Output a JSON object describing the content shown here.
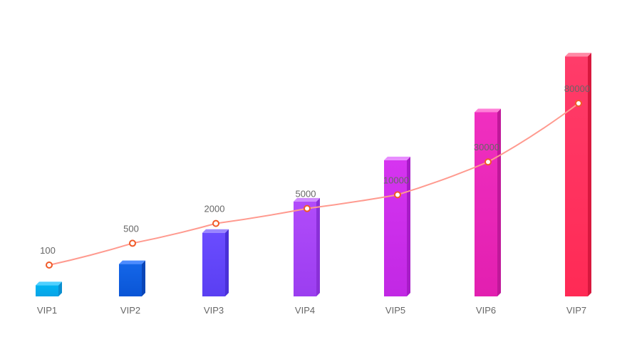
{
  "chart_data": {
    "type": "bar",
    "categories": [
      "VIP1",
      "VIP2",
      "VIP3",
      "VIP4",
      "VIP5",
      "VIP6",
      "VIP7"
    ],
    "series": [
      {
        "type": "bar",
        "values": [
          1,
          2.9,
          5.7,
          8.5,
          12.2,
          16.5,
          21.5
        ],
        "colors": [
          [
            "#00b4f2",
            "#0aa3e6"
          ],
          [
            "#1466e8",
            "#0a55d6"
          ],
          [
            "#6a4cff",
            "#5a3ff2"
          ],
          [
            "#b14bfa",
            "#9b3ef0"
          ],
          [
            "#d634f0",
            "#c128e4"
          ],
          [
            "#f02fc0",
            "#e21fb0"
          ],
          [
            "#ff3c6a",
            "#ff2a55"
          ]
        ],
        "side_colors": [
          "#0a8fd0",
          "#0a46b8",
          "#4a30d8",
          "#8a30d8",
          "#a81cc8",
          "#c0189a",
          "#d8183e"
        ],
        "top_colors": [
          "#4fd0ff",
          "#4d8cff",
          "#9a86ff",
          "#d08cff",
          "#e88cff",
          "#ff80d8",
          "#ff8aa6"
        ]
      },
      {
        "type": "line",
        "values": [
          100,
          500,
          2000,
          5000,
          10000,
          30000,
          80000
        ],
        "labels": [
          "100",
          "500",
          "2000",
          "5000",
          "10000",
          "30000",
          "80000"
        ],
        "line_color": "#ff9a8f",
        "point_color": "#f05a28"
      }
    ],
    "xlabel": "",
    "ylabel": "",
    "ylim": [
      0,
      24
    ],
    "grid": false,
    "legend": "none"
  }
}
